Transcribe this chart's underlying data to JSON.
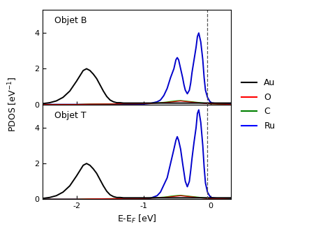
{
  "x_min": -2.5,
  "x_max": 0.3,
  "y_min": 0,
  "y_max": 5.3,
  "y_ticks": [
    0,
    2,
    4
  ],
  "x_ticks": [
    -2,
    -1,
    0
  ],
  "xlabel": "E-E$_F$ [eV]",
  "ylabel": "PDOS [eV$^{-1}$]",
  "title_top": "Objet B",
  "title_bot": "Objet T",
  "legend_labels": [
    "Au",
    "O",
    "C",
    "Ru"
  ],
  "legend_colors": [
    "black",
    "red",
    "green",
    "blue"
  ],
  "vline_x": -0.05,
  "Au_color": "black",
  "O_color": "#cc0000",
  "C_color": "#00bb00",
  "Ru_color": "#0000cc",
  "Au_lw": 1.4,
  "Ru_lw": 1.4,
  "O_lw": 1.0,
  "C_lw": 1.0,
  "top_Au_x": [
    -2.5,
    -2.4,
    -2.3,
    -2.2,
    -2.1,
    -2.0,
    -1.95,
    -1.9,
    -1.85,
    -1.8,
    -1.75,
    -1.7,
    -1.65,
    -1.6,
    -1.55,
    -1.5,
    -1.45,
    -1.4,
    -1.35,
    -1.3,
    -1.25,
    -1.2,
    -1.1,
    -1.0,
    -0.9,
    -0.8,
    -0.7,
    -0.6,
    -0.5,
    -0.4,
    -0.3,
    -0.2,
    -0.1,
    0.0,
    0.1,
    0.2,
    0.3
  ],
  "top_Au_y": [
    0.05,
    0.1,
    0.2,
    0.4,
    0.75,
    1.3,
    1.6,
    1.9,
    2.0,
    1.9,
    1.7,
    1.45,
    1.1,
    0.75,
    0.45,
    0.25,
    0.15,
    0.1,
    0.1,
    0.08,
    0.08,
    0.08,
    0.08,
    0.08,
    0.08,
    0.08,
    0.08,
    0.08,
    0.08,
    0.08,
    0.08,
    0.08,
    0.08,
    0.08,
    0.08,
    0.08,
    0.08
  ],
  "top_O_x": [
    -2.5,
    -2.0,
    -1.8,
    -1.5,
    -1.3,
    -1.1,
    -1.0,
    -0.9,
    -0.8,
    -0.7,
    -0.65,
    -0.6,
    -0.55,
    -0.5,
    -0.45,
    -0.4,
    -0.35,
    -0.3,
    -0.25,
    -0.2,
    -0.15,
    -0.1,
    -0.05,
    0.0,
    0.1,
    0.2,
    0.3
  ],
  "top_O_y": [
    0.0,
    0.0,
    0.02,
    0.03,
    0.04,
    0.04,
    0.05,
    0.06,
    0.08,
    0.1,
    0.12,
    0.14,
    0.16,
    0.18,
    0.2,
    0.18,
    0.16,
    0.14,
    0.12,
    0.1,
    0.08,
    0.06,
    0.05,
    0.04,
    0.03,
    0.02,
    0.0
  ],
  "top_C_x": [
    -2.5,
    -2.0,
    -1.8,
    -1.5,
    -1.3,
    -1.1,
    -1.0,
    -0.9,
    -0.8,
    -0.7,
    -0.65,
    -0.6,
    -0.55,
    -0.5,
    -0.45,
    -0.4,
    -0.35,
    -0.3,
    -0.25,
    -0.2,
    -0.15,
    -0.1,
    -0.05,
    0.0,
    0.1,
    0.2,
    0.3
  ],
  "top_C_y": [
    0.0,
    0.0,
    0.02,
    0.03,
    0.04,
    0.05,
    0.06,
    0.07,
    0.09,
    0.12,
    0.14,
    0.17,
    0.19,
    0.21,
    0.22,
    0.2,
    0.18,
    0.16,
    0.14,
    0.12,
    0.1,
    0.08,
    0.06,
    0.04,
    0.03,
    0.02,
    0.0
  ],
  "top_Ru_x": [
    -2.5,
    -2.0,
    -1.5,
    -1.2,
    -1.0,
    -0.9,
    -0.8,
    -0.75,
    -0.7,
    -0.65,
    -0.6,
    -0.55,
    -0.52,
    -0.5,
    -0.48,
    -0.45,
    -0.42,
    -0.4,
    -0.38,
    -0.35,
    -0.32,
    -0.3,
    -0.28,
    -0.25,
    -0.22,
    -0.2,
    -0.18,
    -0.15,
    -0.12,
    -0.1,
    -0.08,
    -0.05,
    -0.02,
    0.0,
    0.05,
    0.1,
    0.2,
    0.3
  ],
  "top_Ru_y": [
    0.0,
    0.0,
    0.0,
    0.01,
    0.03,
    0.06,
    0.15,
    0.25,
    0.5,
    0.9,
    1.5,
    2.0,
    2.5,
    2.62,
    2.5,
    2.0,
    1.5,
    1.1,
    0.8,
    0.6,
    0.8,
    1.2,
    1.8,
    2.5,
    3.2,
    3.8,
    4.0,
    3.5,
    2.5,
    1.5,
    0.8,
    0.4,
    0.2,
    0.1,
    0.07,
    0.05,
    0.04,
    0.03
  ],
  "bot_Au_x": [
    -2.5,
    -2.4,
    -2.3,
    -2.2,
    -2.1,
    -2.0,
    -1.95,
    -1.9,
    -1.85,
    -1.8,
    -1.75,
    -1.7,
    -1.65,
    -1.6,
    -1.55,
    -1.5,
    -1.45,
    -1.4,
    -1.35,
    -1.3,
    -1.25,
    -1.2,
    -1.1,
    -1.0,
    -0.9,
    -0.8,
    -0.7,
    -0.6,
    -0.5,
    -0.4,
    -0.3,
    -0.2,
    -0.1,
    0.0,
    0.1,
    0.2,
    0.3
  ],
  "bot_Au_y": [
    0.05,
    0.1,
    0.2,
    0.4,
    0.75,
    1.3,
    1.6,
    1.9,
    2.0,
    1.9,
    1.7,
    1.45,
    1.1,
    0.75,
    0.45,
    0.25,
    0.15,
    0.1,
    0.1,
    0.08,
    0.08,
    0.08,
    0.08,
    0.08,
    0.08,
    0.08,
    0.08,
    0.08,
    0.08,
    0.08,
    0.08,
    0.08,
    0.08,
    0.08,
    0.08,
    0.08,
    0.08
  ],
  "bot_O_x": [
    -2.5,
    -2.0,
    -1.8,
    -1.5,
    -1.3,
    -1.1,
    -1.0,
    -0.9,
    -0.8,
    -0.7,
    -0.65,
    -0.6,
    -0.55,
    -0.5,
    -0.45,
    -0.4,
    -0.35,
    -0.3,
    -0.25,
    -0.2,
    -0.15,
    -0.1,
    -0.05,
    0.0,
    0.1,
    0.2,
    0.3
  ],
  "bot_O_y": [
    0.0,
    0.0,
    0.02,
    0.03,
    0.04,
    0.04,
    0.05,
    0.06,
    0.08,
    0.1,
    0.12,
    0.14,
    0.16,
    0.18,
    0.2,
    0.18,
    0.16,
    0.14,
    0.12,
    0.1,
    0.08,
    0.06,
    0.05,
    0.04,
    0.03,
    0.02,
    0.0
  ],
  "bot_C_x": [
    -2.5,
    -2.0,
    -1.8,
    -1.5,
    -1.3,
    -1.1,
    -1.0,
    -0.9,
    -0.8,
    -0.7,
    -0.65,
    -0.6,
    -0.55,
    -0.5,
    -0.45,
    -0.4,
    -0.35,
    -0.3,
    -0.25,
    -0.2,
    -0.15,
    -0.1,
    -0.05,
    0.0,
    0.1,
    0.2,
    0.3
  ],
  "bot_C_y": [
    0.0,
    0.0,
    0.02,
    0.03,
    0.04,
    0.05,
    0.06,
    0.07,
    0.09,
    0.12,
    0.14,
    0.17,
    0.19,
    0.21,
    0.22,
    0.2,
    0.18,
    0.16,
    0.14,
    0.12,
    0.1,
    0.08,
    0.06,
    0.04,
    0.03,
    0.02,
    0.0
  ],
  "bot_Ru_x": [
    -2.5,
    -2.0,
    -1.5,
    -1.2,
    -1.0,
    -0.9,
    -0.8,
    -0.75,
    -0.7,
    -0.65,
    -0.6,
    -0.55,
    -0.52,
    -0.5,
    -0.48,
    -0.45,
    -0.42,
    -0.4,
    -0.38,
    -0.35,
    -0.32,
    -0.3,
    -0.28,
    -0.25,
    -0.22,
    -0.2,
    -0.18,
    -0.15,
    -0.12,
    -0.1,
    -0.08,
    -0.05,
    -0.02,
    0.0,
    0.05,
    0.1,
    0.2,
    0.3
  ],
  "bot_Ru_y": [
    0.0,
    0.0,
    0.0,
    0.01,
    0.03,
    0.06,
    0.2,
    0.4,
    0.8,
    1.2,
    2.0,
    2.8,
    3.3,
    3.5,
    3.3,
    2.8,
    2.0,
    1.5,
    1.0,
    0.7,
    1.0,
    1.6,
    2.3,
    3.2,
    4.0,
    4.8,
    5.0,
    4.3,
    3.0,
    1.8,
    0.9,
    0.4,
    0.2,
    0.1,
    0.07,
    0.05,
    0.04,
    0.03
  ]
}
